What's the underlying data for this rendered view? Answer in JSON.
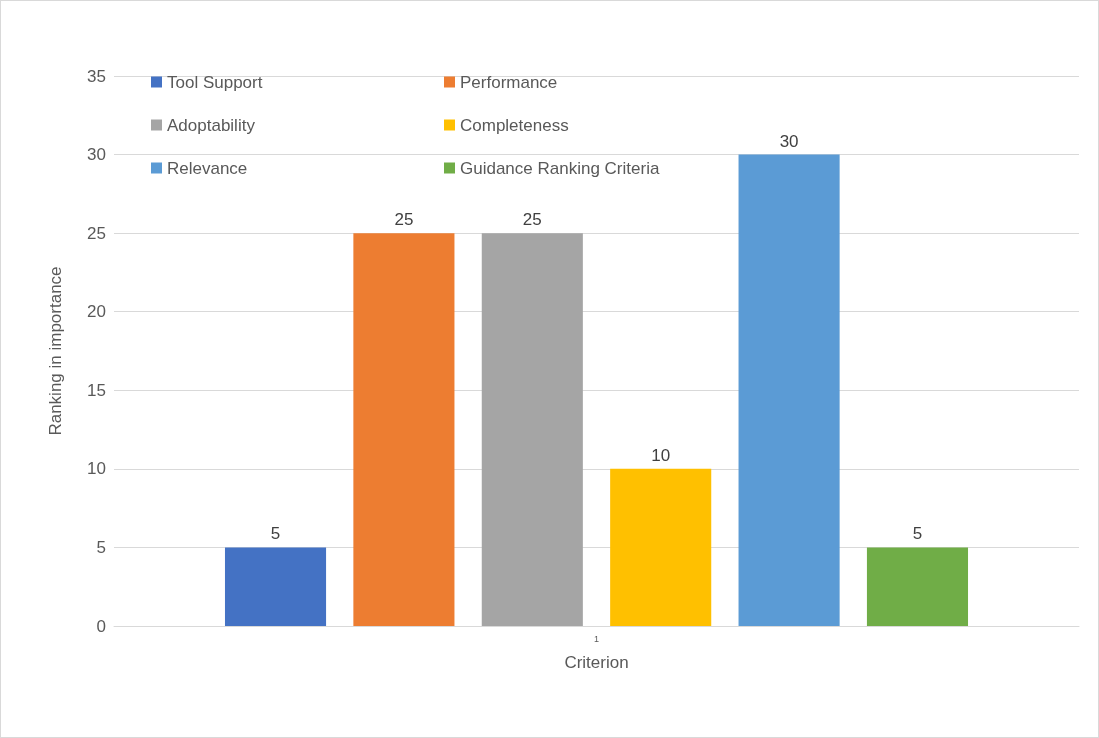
{
  "chart_data": {
    "type": "bar",
    "xlabel": "Criterion",
    "ylabel": "Ranking in importance",
    "categories": [
      "1"
    ],
    "series": [
      {
        "name": "Tool Support",
        "color": "#4472c4",
        "values": [
          5
        ]
      },
      {
        "name": "Performance",
        "color": "#ed7d31",
        "values": [
          25
        ]
      },
      {
        "name": "Adoptability",
        "color": "#a5a5a5",
        "values": [
          25
        ]
      },
      {
        "name": "Completeness",
        "color": "#ffc000",
        "values": [
          10
        ]
      },
      {
        "name": "Relevance",
        "color": "#5b9bd5",
        "values": [
          30
        ]
      },
      {
        "name": "Guidance Ranking Criteria",
        "color": "#70ad47",
        "values": [
          5
        ]
      }
    ],
    "ylim": [
      0,
      35
    ],
    "yticks": [
      0,
      5,
      10,
      15,
      20,
      25,
      30,
      35
    ],
    "grid": "y",
    "legend": "top left",
    "data_labels": true
  }
}
